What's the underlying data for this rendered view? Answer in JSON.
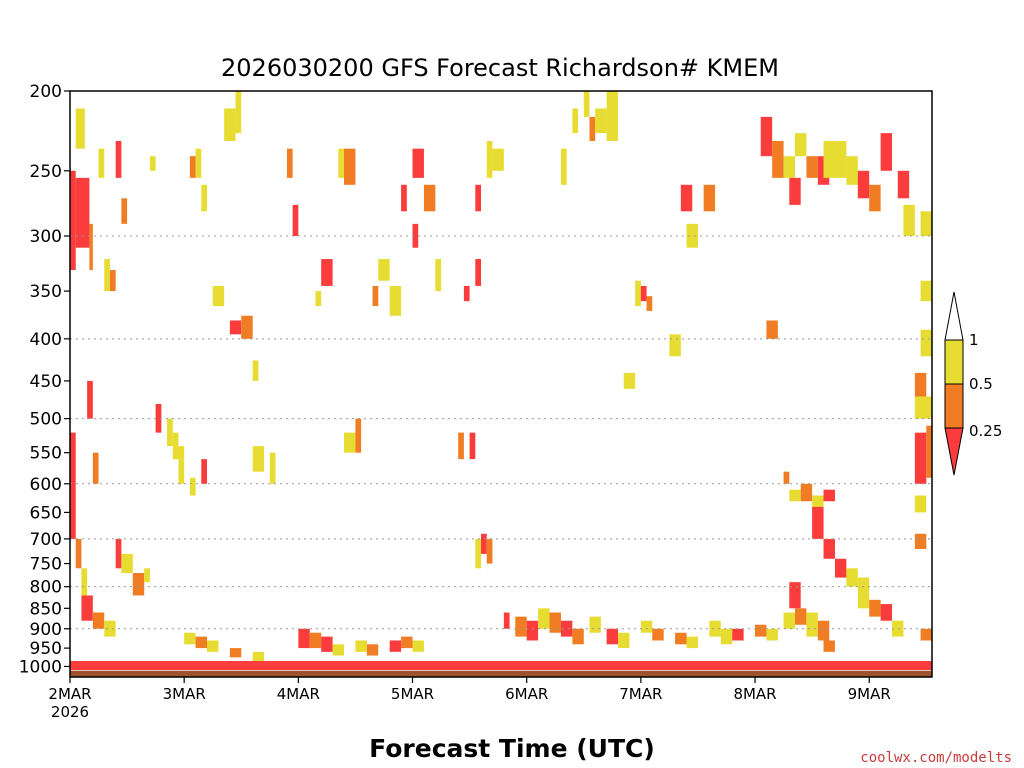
{
  "chart_data": {
    "type": "heatmap",
    "title": "2026030200 GFS Forecast Richardson# KMEM",
    "xlabel": "Forecast Time (UTC)",
    "ylabel": "",
    "watermark": "coolwx.com/modelts",
    "x_axis": {
      "unit": "days",
      "range": [
        0,
        7.55
      ],
      "ticks": [
        {
          "value": 0,
          "label": "2MAR",
          "sublabel": "2026"
        },
        {
          "value": 1,
          "label": "3MAR"
        },
        {
          "value": 2,
          "label": "4MAR"
        },
        {
          "value": 3,
          "label": "5MAR"
        },
        {
          "value": 4,
          "label": "6MAR"
        },
        {
          "value": 5,
          "label": "7MAR"
        },
        {
          "value": 6,
          "label": "8MAR"
        },
        {
          "value": 7,
          "label": "9MAR"
        }
      ]
    },
    "y_axis": {
      "unit": "hPa",
      "scale": "log",
      "range": [
        1030,
        200
      ],
      "ticks": [
        200,
        250,
        300,
        350,
        400,
        450,
        500,
        550,
        600,
        650,
        700,
        750,
        800,
        850,
        900,
        950,
        1000
      ],
      "gridlines": [
        300,
        400,
        500,
        600,
        700,
        800,
        900
      ]
    },
    "colorbar": {
      "labels": [
        "1",
        "0.5",
        "0.25"
      ],
      "bins": [
        {
          "range": "> 1",
          "color": "#ffffff"
        },
        {
          "range": "0.5 - 1",
          "color": "#e6dc32"
        },
        {
          "range": "0.25 - 0.5",
          "color": "#f07d23"
        },
        {
          "range": "< 0.25",
          "color": "#fa3c3c"
        }
      ]
    },
    "ground_color": "#a0522d",
    "grid": true,
    "cells": [
      [
        0.0,
        0.05,
        250,
        330,
        "red"
      ],
      [
        0.05,
        0.13,
        210,
        235,
        "yellow"
      ],
      [
        0.05,
        0.17,
        255,
        310,
        "red"
      ],
      [
        0.17,
        0.2,
        290,
        330,
        "orange"
      ],
      [
        0.25,
        0.3,
        235,
        255,
        "yellow"
      ],
      [
        0.4,
        0.45,
        230,
        255,
        "red"
      ],
      [
        0.3,
        0.35,
        320,
        350,
        "yellow"
      ],
      [
        0.35,
        0.4,
        330,
        350,
        "orange"
      ],
      [
        0.45,
        0.5,
        270,
        290,
        "orange"
      ],
      [
        0.7,
        0.75,
        240,
        250,
        "yellow"
      ],
      [
        1.05,
        1.1,
        240,
        255,
        "orange"
      ],
      [
        1.1,
        1.15,
        235,
        255,
        "yellow"
      ],
      [
        1.15,
        1.2,
        260,
        280,
        "yellow"
      ],
      [
        1.35,
        1.45,
        210,
        230,
        "yellow"
      ],
      [
        1.45,
        1.5,
        200,
        225,
        "yellow"
      ],
      [
        1.25,
        1.35,
        345,
        365,
        "yellow"
      ],
      [
        1.4,
        1.5,
        380,
        395,
        "red"
      ],
      [
        1.5,
        1.6,
        375,
        400,
        "orange"
      ],
      [
        1.6,
        1.65,
        425,
        450,
        "yellow"
      ],
      [
        1.9,
        1.95,
        235,
        255,
        "orange"
      ],
      [
        1.95,
        2.0,
        275,
        300,
        "red"
      ],
      [
        2.15,
        2.2,
        350,
        365,
        "yellow"
      ],
      [
        2.2,
        2.3,
        320,
        345,
        "red"
      ],
      [
        2.35,
        2.4,
        235,
        255,
        "yellow"
      ],
      [
        2.4,
        2.5,
        235,
        260,
        "orange"
      ],
      [
        2.65,
        2.7,
        345,
        365,
        "orange"
      ],
      [
        2.7,
        2.8,
        320,
        340,
        "yellow"
      ],
      [
        2.9,
        2.95,
        260,
        280,
        "red"
      ],
      [
        3.0,
        3.1,
        235,
        255,
        "red"
      ],
      [
        3.1,
        3.2,
        260,
        280,
        "orange"
      ],
      [
        3.0,
        3.05,
        290,
        310,
        "red"
      ],
      [
        2.8,
        2.9,
        345,
        375,
        "yellow"
      ],
      [
        3.2,
        3.25,
        320,
        350,
        "yellow"
      ],
      [
        3.45,
        3.5,
        345,
        360,
        "red"
      ],
      [
        3.55,
        3.6,
        260,
        280,
        "red"
      ],
      [
        3.55,
        3.6,
        320,
        345,
        "red"
      ],
      [
        3.65,
        3.7,
        230,
        255,
        "yellow"
      ],
      [
        3.7,
        3.8,
        235,
        250,
        "yellow"
      ],
      [
        4.3,
        4.35,
        235,
        260,
        "yellow"
      ],
      [
        4.4,
        4.45,
        210,
        225,
        "yellow"
      ],
      [
        4.5,
        4.55,
        200,
        215,
        "yellow"
      ],
      [
        4.55,
        4.6,
        215,
        230,
        "orange"
      ],
      [
        4.6,
        4.7,
        210,
        225,
        "yellow"
      ],
      [
        4.7,
        4.8,
        200,
        230,
        "yellow"
      ],
      [
        4.95,
        5.0,
        340,
        365,
        "yellow"
      ],
      [
        5.0,
        5.05,
        345,
        360,
        "red"
      ],
      [
        5.05,
        5.1,
        355,
        370,
        "orange"
      ],
      [
        4.85,
        4.95,
        440,
        460,
        "yellow"
      ],
      [
        5.35,
        5.45,
        260,
        280,
        "red"
      ],
      [
        5.55,
        5.65,
        260,
        280,
        "orange"
      ],
      [
        5.4,
        5.5,
        290,
        310,
        "yellow"
      ],
      [
        5.25,
        5.35,
        395,
        420,
        "yellow"
      ],
      [
        6.05,
        6.15,
        215,
        240,
        "red"
      ],
      [
        6.15,
        6.25,
        230,
        255,
        "orange"
      ],
      [
        6.25,
        6.35,
        240,
        255,
        "yellow"
      ],
      [
        6.35,
        6.45,
        225,
        240,
        "yellow"
      ],
      [
        6.45,
        6.55,
        240,
        255,
        "orange"
      ],
      [
        6.55,
        6.65,
        240,
        260,
        "red"
      ],
      [
        6.3,
        6.4,
        255,
        275,
        "red"
      ],
      [
        6.6,
        6.8,
        230,
        255,
        "yellow"
      ],
      [
        6.8,
        6.9,
        240,
        260,
        "yellow"
      ],
      [
        6.9,
        7.0,
        250,
        270,
        "red"
      ],
      [
        7.0,
        7.1,
        260,
        280,
        "orange"
      ],
      [
        7.1,
        7.2,
        225,
        250,
        "red"
      ],
      [
        7.25,
        7.35,
        250,
        270,
        "red"
      ],
      [
        7.3,
        7.4,
        275,
        300,
        "yellow"
      ],
      [
        7.45,
        7.55,
        280,
        300,
        "yellow"
      ],
      [
        7.45,
        7.55,
        340,
        360,
        "yellow"
      ],
      [
        7.45,
        7.55,
        390,
        420,
        "yellow"
      ],
      [
        7.4,
        7.5,
        440,
        470,
        "orange"
      ],
      [
        7.4,
        7.55,
        470,
        500,
        "yellow"
      ],
      [
        7.4,
        7.5,
        520,
        600,
        "red"
      ],
      [
        7.5,
        7.55,
        510,
        590,
        "orange"
      ],
      [
        7.4,
        7.5,
        620,
        650,
        "yellow"
      ],
      [
        7.4,
        7.5,
        690,
        720,
        "orange"
      ],
      [
        6.1,
        6.2,
        380,
        400,
        "orange"
      ],
      [
        6.25,
        6.3,
        580,
        600,
        "orange"
      ],
      [
        6.3,
        6.4,
        610,
        630,
        "yellow"
      ],
      [
        6.4,
        6.5,
        600,
        630,
        "orange"
      ],
      [
        6.5,
        6.6,
        620,
        650,
        "yellow"
      ],
      [
        6.6,
        6.7,
        610,
        630,
        "red"
      ],
      [
        6.5,
        6.6,
        640,
        700,
        "red"
      ],
      [
        6.6,
        6.7,
        700,
        740,
        "red"
      ],
      [
        6.7,
        6.8,
        740,
        780,
        "red"
      ],
      [
        6.8,
        6.9,
        760,
        800,
        "yellow"
      ],
      [
        6.9,
        7.0,
        780,
        850,
        "yellow"
      ],
      [
        7.0,
        7.1,
        830,
        870,
        "orange"
      ],
      [
        7.1,
        7.2,
        840,
        880,
        "red"
      ],
      [
        6.3,
        6.4,
        790,
        850,
        "red"
      ],
      [
        6.35,
        6.45,
        850,
        890,
        "orange"
      ],
      [
        6.25,
        6.35,
        860,
        900,
        "yellow"
      ],
      [
        6.45,
        6.55,
        860,
        920,
        "yellow"
      ],
      [
        6.55,
        6.65,
        880,
        930,
        "orange"
      ],
      [
        7.2,
        7.3,
        880,
        920,
        "yellow"
      ],
      [
        7.45,
        7.55,
        900,
        930,
        "orange"
      ],
      [
        6.6,
        6.7,
        930,
        960,
        "orange"
      ],
      [
        0.0,
        0.05,
        520,
        700,
        "red"
      ],
      [
        0.05,
        0.1,
        700,
        760,
        "orange"
      ],
      [
        0.1,
        0.15,
        760,
        820,
        "yellow"
      ],
      [
        0.1,
        0.2,
        820,
        880,
        "red"
      ],
      [
        0.2,
        0.3,
        860,
        900,
        "orange"
      ],
      [
        0.3,
        0.4,
        880,
        920,
        "yellow"
      ],
      [
        0.15,
        0.2,
        450,
        500,
        "red"
      ],
      [
        0.2,
        0.25,
        550,
        600,
        "orange"
      ],
      [
        0.4,
        0.45,
        700,
        760,
        "red"
      ],
      [
        0.45,
        0.55,
        730,
        770,
        "yellow"
      ],
      [
        0.55,
        0.65,
        770,
        820,
        "orange"
      ],
      [
        0.65,
        0.7,
        760,
        790,
        "yellow"
      ],
      [
        0.75,
        0.8,
        480,
        520,
        "red"
      ],
      [
        0.85,
        0.9,
        500,
        540,
        "yellow"
      ],
      [
        0.9,
        0.95,
        520,
        560,
        "yellow"
      ],
      [
        0.95,
        1.0,
        540,
        600,
        "yellow"
      ],
      [
        1.05,
        1.1,
        590,
        620,
        "yellow"
      ],
      [
        1.15,
        1.2,
        560,
        600,
        "red"
      ],
      [
        1.6,
        1.7,
        540,
        580,
        "yellow"
      ],
      [
        1.75,
        1.8,
        550,
        600,
        "yellow"
      ],
      [
        2.4,
        2.5,
        520,
        550,
        "yellow"
      ],
      [
        2.5,
        2.55,
        500,
        550,
        "orange"
      ],
      [
        3.4,
        3.45,
        520,
        560,
        "orange"
      ],
      [
        3.5,
        3.55,
        520,
        560,
        "red"
      ],
      [
        3.55,
        3.6,
        700,
        760,
        "yellow"
      ],
      [
        3.6,
        3.65,
        690,
        730,
        "red"
      ],
      [
        3.65,
        3.7,
        700,
        750,
        "orange"
      ],
      [
        3.8,
        3.85,
        860,
        900,
        "red"
      ],
      [
        3.9,
        4.0,
        870,
        920,
        "orange"
      ],
      [
        4.0,
        4.1,
        880,
        930,
        "red"
      ],
      [
        4.1,
        4.2,
        850,
        900,
        "yellow"
      ],
      [
        4.2,
        4.3,
        860,
        910,
        "orange"
      ],
      [
        4.3,
        4.4,
        880,
        920,
        "red"
      ],
      [
        4.4,
        4.5,
        900,
        940,
        "orange"
      ],
      [
        4.55,
        4.65,
        870,
        910,
        "yellow"
      ],
      [
        4.7,
        4.8,
        900,
        940,
        "red"
      ],
      [
        4.8,
        4.9,
        910,
        950,
        "yellow"
      ],
      [
        5.0,
        5.1,
        880,
        910,
        "yellow"
      ],
      [
        5.1,
        5.2,
        900,
        930,
        "orange"
      ],
      [
        5.3,
        5.4,
        910,
        940,
        "orange"
      ],
      [
        5.4,
        5.5,
        920,
        950,
        "yellow"
      ],
      [
        5.6,
        5.7,
        880,
        920,
        "yellow"
      ],
      [
        5.7,
        5.8,
        900,
        940,
        "yellow"
      ],
      [
        5.8,
        5.9,
        900,
        930,
        "red"
      ],
      [
        6.0,
        6.1,
        890,
        920,
        "orange"
      ],
      [
        6.1,
        6.2,
        900,
        930,
        "yellow"
      ],
      [
        2.0,
        2.1,
        900,
        950,
        "red"
      ],
      [
        2.1,
        2.2,
        910,
        950,
        "orange"
      ],
      [
        2.2,
        2.3,
        920,
        960,
        "red"
      ],
      [
        2.3,
        2.4,
        940,
        970,
        "yellow"
      ],
      [
        2.5,
        2.6,
        930,
        960,
        "yellow"
      ],
      [
        2.6,
        2.7,
        940,
        970,
        "orange"
      ],
      [
        2.8,
        2.9,
        930,
        960,
        "red"
      ],
      [
        2.9,
        3.0,
        920,
        950,
        "orange"
      ],
      [
        3.0,
        3.1,
        930,
        960,
        "yellow"
      ],
      [
        1.0,
        1.1,
        910,
        940,
        "yellow"
      ],
      [
        1.1,
        1.2,
        920,
        950,
        "orange"
      ],
      [
        1.2,
        1.3,
        930,
        960,
        "yellow"
      ],
      [
        1.4,
        1.5,
        950,
        975,
        "orange"
      ],
      [
        1.6,
        1.7,
        960,
        985,
        "yellow"
      ]
    ]
  }
}
